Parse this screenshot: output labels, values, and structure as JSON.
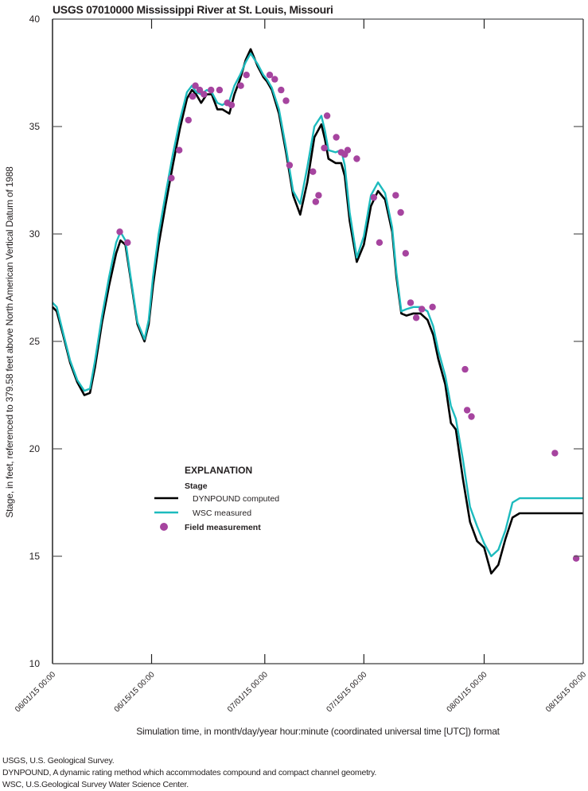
{
  "title": "USGS 07010000 Mississippi River at St. Louis, Missouri",
  "chart_data": {
    "type": "line",
    "title": "USGS 07010000 Mississippi River at St. Louis, Missouri",
    "xlabel": "Simulation time, in month/day/year hour:minute (coordinated universal time [UTC]) format",
    "ylabel": "Stage, in feet, referenced to 379.58 feet above North American Vertical Datum of 1988",
    "ylim": [
      10,
      40
    ],
    "yticks": [
      10,
      15,
      20,
      25,
      30,
      35,
      40
    ],
    "xlim_days": [
      0,
      75
    ],
    "xticks": [
      {
        "day": 0,
        "label": "06/01/15 00:00"
      },
      {
        "day": 14,
        "label": "06/15/15 00:00"
      },
      {
        "day": 30,
        "label": "07/01/15 00:00"
      },
      {
        "day": 44,
        "label": "07/15/15 00:00"
      },
      {
        "day": 61,
        "label": "08/01/15 00:00"
      },
      {
        "day": 75,
        "label": "08/15/15 00:00"
      }
    ],
    "grid": false,
    "legend": {
      "title": "EXPLANATION",
      "subtitle": "Stage",
      "position": "lower-left-center",
      "entries": [
        {
          "label": "DYNPOUND computed",
          "type": "line",
          "color": "#000000"
        },
        {
          "label": "WSC measured",
          "type": "line",
          "color": "#1dbbbe"
        },
        {
          "label": "Field measurement",
          "type": "marker",
          "color": "#a6449f"
        }
      ]
    },
    "series": [
      {
        "name": "DYNPOUND computed",
        "color": "#000000",
        "x_days": [
          0,
          0.6,
          1.5,
          2.5,
          3.5,
          4.5,
          5.3,
          6,
          7,
          8,
          9,
          9.6,
          10.3,
          11,
          12,
          13,
          13.6,
          14.2,
          15,
          16,
          17,
          18,
          19,
          19.7,
          20.3,
          21,
          21.8,
          22.5,
          23.3,
          24,
          25,
          25.7,
          26.5,
          27.3,
          28,
          29,
          29.8,
          30.3,
          31,
          32,
          33,
          34,
          35,
          36,
          37,
          38,
          38.5,
          39,
          40,
          40.8,
          41.3,
          42,
          43,
          44,
          45,
          46,
          47,
          48,
          48.6,
          49.3,
          50,
          51,
          52,
          53,
          53.8,
          54.5,
          55.5,
          56.3,
          57,
          58,
          59,
          60,
          61,
          62,
          63,
          64,
          65,
          66,
          67,
          68,
          69,
          70,
          70.8,
          71.5,
          72.2,
          73,
          73.6,
          74.2,
          75
        ],
        "values": [
          26.6,
          26.4,
          25.3,
          24.0,
          23.1,
          22.5,
          22.6,
          23.8,
          25.9,
          27.6,
          29.1,
          29.7,
          29.5,
          28.0,
          25.8,
          25.0,
          25.8,
          27.6,
          29.5,
          31.4,
          33.2,
          34.9,
          36.3,
          36.7,
          36.5,
          36.1,
          36.5,
          36.5,
          35.8,
          35.8,
          35.6,
          36.5,
          37.2,
          38.1,
          38.6,
          37.8,
          37.3,
          37.1,
          36.7,
          35.6,
          33.8,
          31.8,
          30.9,
          32.4,
          34.5,
          35.1,
          34.4,
          33.5,
          33.3,
          33.3,
          32.7,
          30.6,
          28.7,
          29.5,
          31.3,
          32.0,
          31.6,
          30.1,
          28.0,
          26.3,
          26.2,
          26.3,
          26.3,
          26.0,
          25.3,
          24.2,
          23.0,
          21.2,
          20.9,
          18.6,
          16.6,
          15.7,
          15.4,
          14.2,
          14.6,
          15.8,
          16.8,
          17.0,
          17.0,
          17.0,
          17.0,
          17.0,
          17.0,
          17.0,
          17.0,
          17.0,
          17.0,
          17.0,
          17.0
        ]
      },
      {
        "name": "WSC measured",
        "color": "#1dbbbe",
        "x_days": [
          0,
          0.6,
          1.5,
          2.5,
          3.5,
          4.5,
          5.3,
          6,
          7,
          8,
          9,
          9.6,
          10.3,
          11,
          12,
          13,
          13.6,
          14.2,
          15,
          16,
          17,
          18,
          19,
          19.7,
          20.3,
          21,
          21.8,
          22.5,
          23.3,
          24,
          25,
          25.7,
          26.5,
          27.3,
          28,
          29,
          29.8,
          30.3,
          31,
          32,
          33,
          34,
          35,
          36,
          37,
          38,
          38.5,
          39,
          40,
          40.8,
          41.3,
          42,
          43,
          44,
          45,
          46,
          47,
          48,
          48.6,
          49.3,
          50,
          51,
          52,
          53,
          53.8,
          54.5,
          55.5,
          56.3,
          57,
          58,
          59,
          60,
          61,
          62,
          63,
          64,
          65,
          66,
          67,
          68,
          69,
          70,
          70.8,
          71.5,
          72.2,
          73,
          73.6,
          74.2,
          75
        ],
        "values": [
          26.8,
          26.6,
          25.4,
          24.1,
          23.2,
          22.7,
          22.8,
          24.1,
          26.2,
          28.0,
          29.6,
          30.1,
          29.7,
          28.1,
          25.9,
          25.1,
          26.0,
          28.0,
          30.0,
          31.9,
          33.7,
          35.3,
          36.6,
          36.9,
          36.6,
          36.5,
          36.7,
          36.6,
          36.1,
          36.0,
          36.2,
          36.9,
          37.4,
          38.0,
          38.4,
          37.9,
          37.4,
          37.2,
          36.8,
          35.8,
          34.0,
          32.0,
          31.4,
          33.1,
          35.0,
          35.5,
          34.8,
          33.9,
          33.8,
          33.9,
          33.2,
          31.0,
          28.9,
          29.9,
          31.8,
          32.4,
          31.9,
          30.3,
          28.2,
          26.4,
          26.5,
          26.6,
          26.6,
          26.4,
          25.7,
          24.6,
          23.4,
          22.0,
          21.4,
          19.5,
          17.3,
          16.4,
          15.6,
          15.0,
          15.3,
          16.2,
          17.5,
          17.7,
          17.7,
          17.7,
          17.7,
          17.7,
          17.7,
          17.7,
          17.7,
          17.7,
          17.7,
          17.7,
          17.7
        ]
      },
      {
        "name": "Field measurement",
        "type": "scatter",
        "color": "#a6449f",
        "x_days": [
          9.5,
          10.6,
          16.8,
          17.9,
          19.2,
          19.8,
          20.2,
          20.8,
          21.4,
          22.4,
          23.6,
          24.7,
          25.3,
          26.6,
          27.4,
          30.7,
          31.4,
          32.3,
          33.0,
          33.5,
          36.8,
          37.2,
          37.6,
          38.4,
          38.8,
          40.1,
          40.8,
          41.3,
          41.7,
          43.0,
          45.4,
          46.2,
          48.5,
          49.2,
          49.9,
          50.6,
          51.4,
          52.2,
          53.7,
          58.3,
          58.6,
          59.2,
          71.0,
          74.0
        ],
        "values": [
          30.1,
          29.6,
          32.6,
          33.9,
          35.3,
          36.4,
          36.9,
          36.7,
          36.5,
          36.7,
          36.7,
          36.1,
          36.0,
          36.9,
          37.4,
          37.4,
          37.2,
          36.7,
          36.2,
          33.2,
          32.9,
          31.5,
          31.8,
          34.0,
          35.5,
          34.5,
          33.8,
          33.7,
          33.9,
          33.5,
          31.7,
          29.6,
          31.8,
          31.0,
          29.1,
          26.8,
          26.1,
          26.5,
          26.6,
          23.7,
          21.8,
          21.5,
          19.8,
          14.9
        ]
      }
    ]
  },
  "notes": [
    "USGS, U.S. Geological Survey.",
    "DYNPOUND, A dynamic rating method which accommodates compound and compact channel geometry.",
    "WSC, U.S.Geological Survey Water Science Center."
  ]
}
